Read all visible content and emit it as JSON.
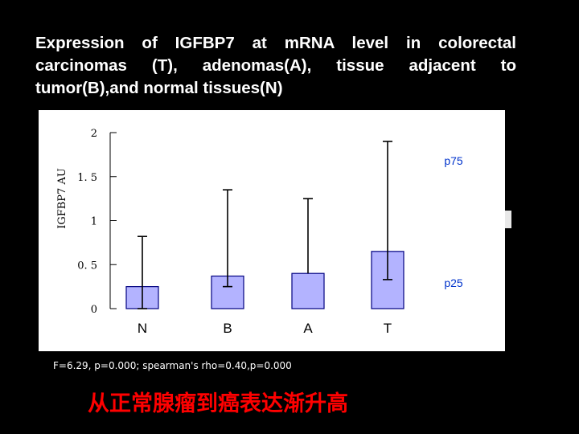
{
  "slide": {
    "title": "Expression of IGFBP7 at mRNA level in colorectal carcinomas (T), adenomas(A), tissue adjacent to tumor(B),and normal tissues(N)",
    "stats_note": "F=6.29, p=0.000; spearman's rho=0.40,p=0.000",
    "caption": "从正常腺瘤到癌表达渐升高"
  },
  "chart_data": {
    "type": "bar",
    "categories": [
      "N",
      "B",
      "A",
      "T"
    ],
    "values": [
      0.25,
      0.37,
      0.4,
      0.65
    ],
    "error_bars": {
      "low": [
        0,
        0.25,
        null,
        0.33
      ],
      "high": [
        0.82,
        1.35,
        1.25,
        1.9
      ]
    },
    "ylabel": "IGFBP7 AU",
    "xlabel": "",
    "ylim": [
      0,
      2
    ],
    "y_ticks": [
      "0",
      "0. 5",
      "1",
      "1. 5",
      "2"
    ],
    "annotations": [
      "p75",
      "p25"
    ],
    "bar_color": "#b3b3ff",
    "bar_stroke": "#000080",
    "annotation_color": "#0033cc",
    "grid": false
  }
}
